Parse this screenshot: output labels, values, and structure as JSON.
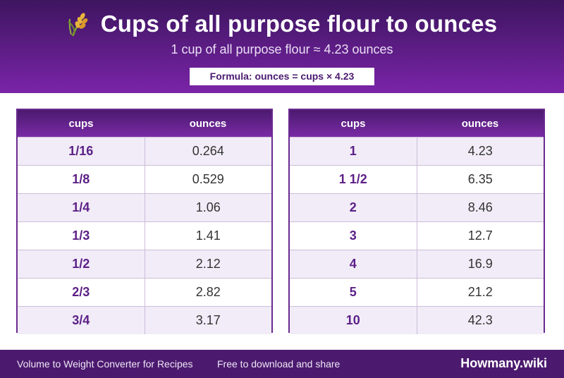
{
  "header": {
    "title": "Cups of all purpose flour to ounces",
    "subtitle": "1 cup of all purpose flour ≈ 4.23 ounces",
    "formula": "Formula: ounces = cups × 4.23",
    "icon": "wheat-icon"
  },
  "table_left": {
    "col1": "cups",
    "col2": "ounces",
    "rows": [
      {
        "cups": "1/16",
        "ounces": "0.264"
      },
      {
        "cups": "1/8",
        "ounces": "0.529"
      },
      {
        "cups": "1/4",
        "ounces": "1.06"
      },
      {
        "cups": "1/3",
        "ounces": "1.41"
      },
      {
        "cups": "1/2",
        "ounces": "2.12"
      },
      {
        "cups": "2/3",
        "ounces": "2.82"
      },
      {
        "cups": "3/4",
        "ounces": "3.17"
      }
    ]
  },
  "table_right": {
    "col1": "cups",
    "col2": "ounces",
    "rows": [
      {
        "cups": "1",
        "ounces": "4.23"
      },
      {
        "cups": "1 1/2",
        "ounces": "6.35"
      },
      {
        "cups": "2",
        "ounces": "8.46"
      },
      {
        "cups": "3",
        "ounces": "12.7"
      },
      {
        "cups": "4",
        "ounces": "16.9"
      },
      {
        "cups": "5",
        "ounces": "21.2"
      },
      {
        "cups": "10",
        "ounces": "42.3"
      }
    ]
  },
  "footer": {
    "left": "Volume to Weight Converter for Recipes",
    "middle": "Free to download and share",
    "brand": "Howmany.wiki"
  },
  "colors": {
    "header_dark": "#3d155f",
    "header_light": "#7a24a8",
    "accent_text": "#5c1f86",
    "footer": "#4b1a6f"
  }
}
